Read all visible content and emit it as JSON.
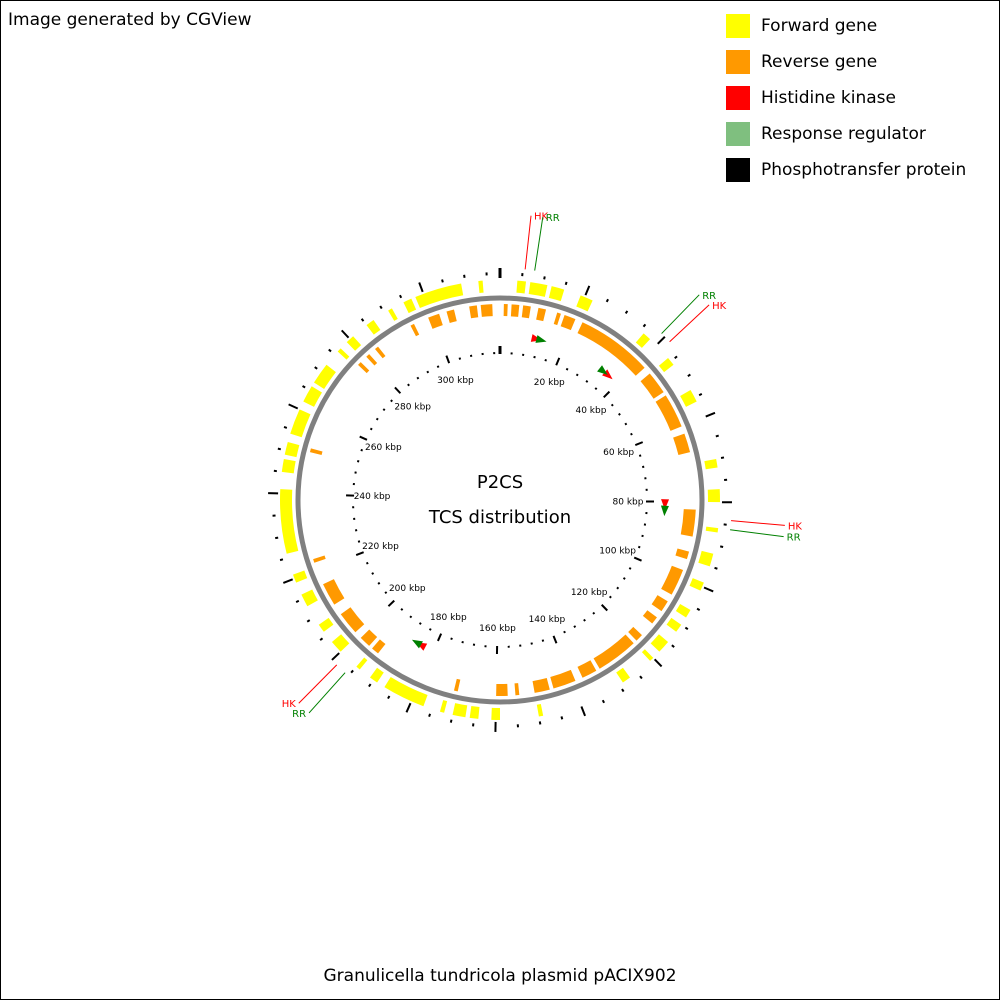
{
  "credit": "Image generated by CGView",
  "legend": [
    {
      "label": "Forward gene",
      "color": "#ffff00"
    },
    {
      "label": "Reverse gene",
      "color": "#ff9900"
    },
    {
      "label": "Histidine kinase",
      "color": "#ff0000"
    },
    {
      "label": "Response regulator",
      "color": "#7fbf7f"
    },
    {
      "label": "Phosphotransfer protein",
      "color": "#000000"
    }
  ],
  "center_title": [
    "P2CS",
    "TCS distribution"
  ],
  "footer": "Granulicella tundricola plasmid pACIX902",
  "genome": {
    "length_kbp": 318,
    "tick_labels_kbp": [
      20,
      40,
      60,
      80,
      100,
      120,
      140,
      160,
      180,
      200,
      220,
      240,
      260,
      280,
      300
    ],
    "tick_unit": "kbp"
  },
  "forward_genes_kbp": [
    [
      4,
      6
    ],
    [
      7,
      11
    ],
    [
      12,
      15
    ],
    [
      19,
      22
    ],
    [
      36,
      38
    ],
    [
      44,
      46
    ],
    [
      53,
      56
    ],
    [
      70,
      72
    ],
    [
      77,
      80
    ],
    [
      86,
      87
    ],
    [
      92,
      95
    ],
    [
      99,
      101
    ],
    [
      106,
      108
    ],
    [
      110,
      112
    ],
    [
      115,
      118
    ],
    [
      120,
      121
    ],
    [
      127,
      129
    ],
    [
      149,
      150
    ],
    [
      159,
      161
    ],
    [
      164,
      166
    ],
    [
      167,
      170
    ],
    [
      172,
      173
    ],
    [
      177,
      187
    ],
    [
      189,
      191
    ],
    [
      194,
      195
    ],
    [
      200,
      203
    ],
    [
      206,
      208
    ],
    [
      213,
      216
    ],
    [
      219,
      221
    ],
    [
      226,
      241
    ],
    [
      245,
      248
    ],
    [
      249,
      252
    ],
    [
      254,
      260
    ],
    [
      262,
      266
    ],
    [
      267,
      272
    ],
    [
      276,
      277
    ],
    [
      279,
      281
    ],
    [
      285,
      287
    ],
    [
      291,
      292
    ],
    [
      295,
      297
    ],
    [
      298,
      309
    ],
    [
      313,
      314
    ]
  ],
  "reverse_genes_kbp": [
    [
      1,
      2
    ],
    [
      3,
      5
    ],
    [
      6,
      8
    ],
    [
      10,
      12
    ],
    [
      15,
      16
    ],
    [
      17,
      20
    ],
    [
      22,
      42
    ],
    [
      44,
      50
    ],
    [
      51,
      60
    ],
    [
      62,
      67
    ],
    [
      82,
      89
    ],
    [
      93,
      95
    ],
    [
      98,
      105
    ],
    [
      107,
      110
    ],
    [
      112,
      114
    ],
    [
      118,
      120
    ],
    [
      121,
      132
    ],
    [
      133,
      137
    ],
    [
      139,
      145
    ],
    [
      146,
      150
    ],
    [
      154,
      155
    ],
    [
      157,
      160
    ],
    [
      170,
      171
    ],
    [
      193,
      195
    ],
    [
      196,
      199
    ],
    [
      201,
      207
    ],
    [
      210,
      216
    ],
    [
      222,
      223
    ],
    [
      251,
      252
    ],
    [
      277,
      278
    ],
    [
      280,
      281
    ],
    [
      283,
      284
    ],
    [
      294,
      295
    ],
    [
      299,
      302
    ],
    [
      304,
      306
    ],
    [
      310,
      312
    ],
    [
      313,
      316
    ]
  ],
  "tcs_features": [
    {
      "type": "HK",
      "pos_kbp": 11,
      "color": "#ff0000"
    },
    {
      "type": "RR",
      "pos_kbp": 12.5,
      "color": "#008000"
    },
    {
      "type": "HK",
      "pos_kbp": 36,
      "color": "#ff0000"
    },
    {
      "type": "RR",
      "pos_kbp": 34,
      "color": "#008000"
    },
    {
      "type": "HK",
      "pos_kbp": 80.5,
      "color": "#ff0000"
    },
    {
      "type": "RR",
      "pos_kbp": 82.5,
      "color": "#008000"
    },
    {
      "type": "HK",
      "pos_kbp": 184,
      "color": "#ff0000"
    },
    {
      "type": "RR",
      "pos_kbp": 185.5,
      "color": "#008000"
    }
  ],
  "callouts": [
    {
      "text": "HK",
      "color": "#ff0000",
      "pos_kbp": 5.5
    },
    {
      "text": "RR",
      "color": "#008000",
      "pos_kbp": 7.6
    },
    {
      "text": "RR",
      "color": "#008000",
      "pos_kbp": 39
    },
    {
      "text": "HK",
      "color": "#ff0000",
      "pos_kbp": 41.5
    },
    {
      "text": "HK",
      "color": "#ff0000",
      "pos_kbp": 84
    },
    {
      "text": "RR",
      "color": "#008000",
      "pos_kbp": 86
    },
    {
      "text": "HK",
      "color": "#ff0000",
      "pos_kbp": 198.5
    },
    {
      "text": "RR",
      "color": "#008000",
      "pos_kbp": 196
    }
  ]
}
